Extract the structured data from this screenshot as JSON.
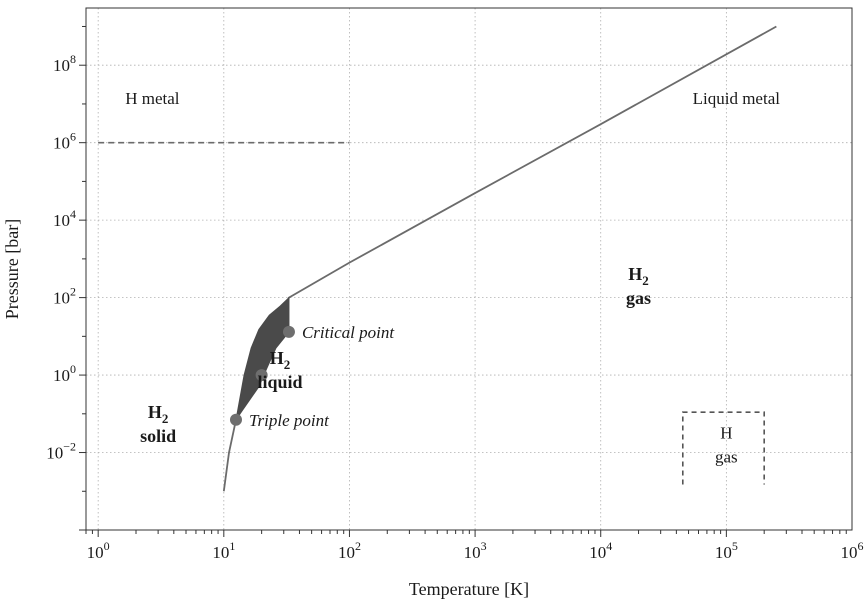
{
  "chart_data": {
    "type": "line",
    "xlabel": "Temperature [K]",
    "ylabel": "Pressure [bar]",
    "x_scale": "log",
    "y_scale": "log",
    "xlim": [
      0.8,
      1000000
    ],
    "ylim": [
      0.0001,
      3000000000
    ],
    "grid": true,
    "x_ticks": [
      {
        "base": "10",
        "exp": "0",
        "value": 1
      },
      {
        "base": "10",
        "exp": "1",
        "value": 10
      },
      {
        "base": "10",
        "exp": "2",
        "value": 100
      },
      {
        "base": "10",
        "exp": "3",
        "value": 1000
      },
      {
        "base": "10",
        "exp": "4",
        "value": 10000
      },
      {
        "base": "10",
        "exp": "5",
        "value": 100000
      },
      {
        "base": "10",
        "exp": "6",
        "value": 1000000
      }
    ],
    "y_ticks": [
      {
        "base": "10",
        "exp": "−2",
        "value": 0.01
      },
      {
        "base": "10",
        "exp": "0",
        "value": 1
      },
      {
        "base": "10",
        "exp": "2",
        "value": 100
      },
      {
        "base": "10",
        "exp": "4",
        "value": 10000
      },
      {
        "base": "10",
        "exp": "6",
        "value": 1000000
      },
      {
        "base": "10",
        "exp": "8",
        "value": 100000000
      }
    ],
    "series": [
      {
        "kind": "line",
        "color": "#6b6b6b",
        "points": [
          [
            10,
            0.001
          ],
          [
            11,
            0.01
          ],
          [
            12.5,
            0.07
          ],
          [
            14,
            0.2
          ],
          [
            17,
            1
          ],
          [
            21,
            5
          ],
          [
            26,
            15
          ],
          [
            33,
            100
          ],
          [
            100,
            800
          ],
          [
            1000,
            50000
          ],
          [
            10000,
            3000000
          ],
          [
            250000,
            1000000000
          ]
        ]
      },
      {
        "kind": "filled-region",
        "color": "#4a4a4a",
        "points": [
          [
            12.5,
            0.07
          ],
          [
            14.5,
            1
          ],
          [
            16.5,
            5
          ],
          [
            19,
            15
          ],
          [
            23,
            35
          ],
          [
            28,
            60
          ],
          [
            33,
            100
          ],
          [
            33,
            60
          ],
          [
            33,
            13
          ],
          [
            26,
            5
          ],
          [
            22,
            1.5
          ],
          [
            19,
            0.5
          ],
          [
            14,
            0.12
          ],
          [
            12.5,
            0.07
          ]
        ]
      },
      {
        "kind": "dashed-line",
        "color": "#6b6b6b",
        "points": [
          [
            1,
            1000000
          ],
          [
            100,
            1000000
          ]
        ]
      },
      {
        "kind": "dashed-box",
        "color": "#555555",
        "points": [
          [
            45000,
            0.0015
          ],
          [
            200000,
            0.11
          ]
        ]
      }
    ],
    "points": [
      {
        "label": "Triple point",
        "x": 12.5,
        "y": 0.07
      },
      {
        "label": "",
        "x": 20,
        "y": 1
      },
      {
        "label": "Critical point",
        "x": 33,
        "y": 13
      }
    ],
    "annotations": [
      {
        "text": "H metal",
        "x": 2.7,
        "y": 10000000,
        "style": "normal"
      },
      {
        "text": "Liquid metal",
        "x": 120000,
        "y": 10000000,
        "style": "normal"
      },
      {
        "lines": [
          "H",
          "gas"
        ],
        "sub": "2",
        "x": 20000,
        "y": 150,
        "style": "bold"
      },
      {
        "lines": [
          "H",
          "liquid"
        ],
        "sub": "2",
        "x": 28,
        "y": 1,
        "style": "bold"
      },
      {
        "lines": [
          "H",
          "solid"
        ],
        "sub": "2",
        "x": 3,
        "y": 0.04,
        "style": "bold"
      },
      {
        "lines": [
          "H",
          "gas"
        ],
        "x": 100000,
        "y": 0.012,
        "style": "normal"
      }
    ]
  }
}
